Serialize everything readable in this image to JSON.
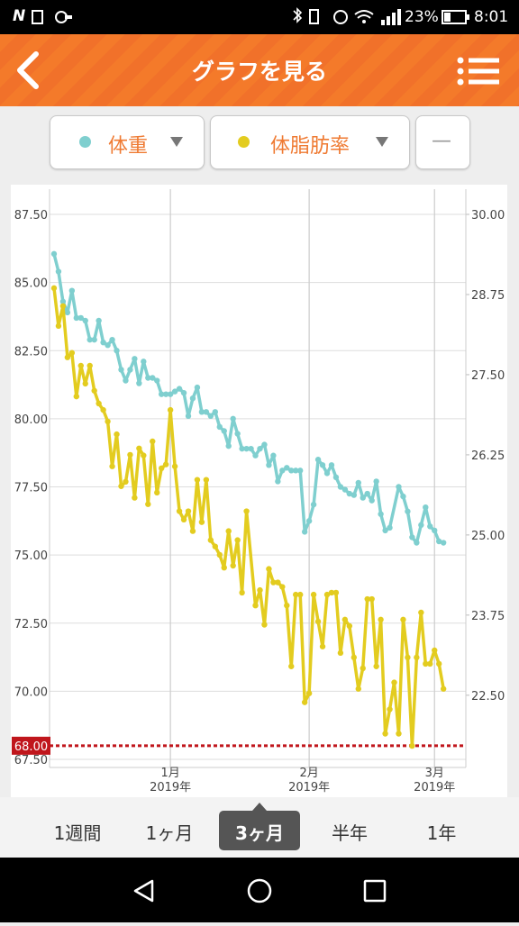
{
  "status_bar": {
    "carrier": "N",
    "battery": "23%",
    "time": "8:01"
  },
  "header": {
    "title": "グラフを見る"
  },
  "selectors": {
    "extra": "—"
  },
  "chart_data": {
    "type": "line",
    "series": [
      {
        "name": "体重",
        "color": "#7fcfcf",
        "axis": "y",
        "x": [
          -26,
          -25,
          -24,
          -23,
          -22,
          -21,
          -20,
          -19,
          -18,
          -17,
          -16,
          -15,
          -14,
          -13,
          -12,
          -11,
          -10,
          -9,
          -8,
          -7,
          -6,
          -5,
          -4,
          -3,
          -2,
          -1,
          0,
          1,
          2,
          3,
          4,
          5,
          6,
          7,
          8,
          9,
          10,
          11,
          12,
          13,
          14,
          15,
          16,
          17,
          18,
          19,
          20,
          21,
          22,
          23,
          24,
          25,
          26,
          27,
          28,
          29,
          30,
          31,
          32,
          33,
          34,
          35,
          36,
          37,
          38,
          39,
          40,
          41,
          42,
          43,
          44,
          45,
          46,
          47,
          48,
          49,
          51,
          52,
          53,
          54,
          55,
          56,
          57,
          58,
          59,
          60,
          61
        ],
        "values": [
          86.05,
          85.4,
          84.3,
          83.9,
          84.7,
          83.7,
          83.7,
          83.6,
          82.9,
          82.9,
          83.6,
          82.8,
          82.7,
          82.9,
          82.5,
          81.8,
          81.4,
          81.8,
          82.2,
          81.3,
          82.1,
          81.5,
          81.5,
          81.4,
          80.9,
          80.9,
          80.9,
          81.0,
          81.1,
          80.95,
          80.1,
          80.75,
          81.15,
          80.25,
          80.25,
          80.1,
          80.25,
          79.7,
          79.55,
          79.0,
          80.0,
          79.45,
          78.9,
          78.9,
          78.9,
          78.65,
          78.9,
          79.05,
          78.3,
          78.65,
          77.7,
          78.1,
          78.2,
          78.1,
          78.1,
          78.1,
          75.85,
          76.25,
          76.85,
          78.5,
          78.3,
          78.0,
          78.3,
          77.85,
          77.5,
          77.4,
          77.25,
          77.2,
          77.65,
          77.1,
          77.25,
          77.0,
          77.7,
          76.5,
          75.9,
          76.0,
          77.5,
          77.15,
          76.6,
          75.65,
          75.45,
          76.1,
          76.75,
          76.05,
          75.9,
          75.5,
          75.45
        ]
      },
      {
        "name": "体脂肪率",
        "color": "#e3cc1f",
        "axis": "y2",
        "x": [
          -26,
          -25,
          -24,
          -23,
          -22,
          -21,
          -20,
          -19,
          -18,
          -17,
          -16,
          -15,
          -14,
          -13,
          -12,
          -11,
          -10,
          -9,
          -8,
          -7,
          -6,
          -5,
          -4,
          -3,
          -2,
          -1,
          0,
          1,
          2,
          3,
          4,
          5,
          6,
          7,
          8,
          9,
          10,
          11,
          12,
          13,
          14,
          15,
          16,
          17,
          19,
          20,
          21,
          22,
          23,
          24,
          25,
          26,
          27,
          28,
          29,
          30,
          31,
          32,
          33,
          34,
          35,
          36,
          37,
          38,
          39,
          40,
          41,
          42,
          43,
          44,
          45,
          46,
          47,
          48,
          49,
          50,
          51,
          52,
          53,
          54,
          55,
          56,
          57,
          58,
          59,
          60,
          61
        ],
        "values": [
          28.85,
          28.26,
          28.57,
          27.77,
          27.84,
          27.16,
          27.64,
          27.36,
          27.64,
          27.25,
          27.05,
          26.95,
          26.77,
          26.07,
          26.57,
          25.76,
          25.83,
          26.25,
          25.58,
          26.35,
          26.24,
          25.48,
          26.46,
          25.66,
          26.04,
          26.1,
          26.95,
          26.07,
          25.37,
          25.24,
          25.37,
          25.06,
          25.86,
          25.2,
          25.86,
          24.92,
          24.82,
          24.69,
          24.49,
          25.06,
          24.52,
          24.92,
          24.1,
          25.37,
          23.9,
          24.14,
          23.6,
          24.47,
          24.26,
          24.26,
          24.19,
          23.9,
          22.95,
          24.07,
          24.07,
          22.39,
          22.53,
          24.07,
          23.65,
          23.26,
          24.07,
          24.1,
          24.1,
          23.16,
          23.68,
          23.58,
          23.09,
          22.6,
          22.92,
          24.0,
          24.0,
          22.95,
          23.68,
          21.9,
          22.28,
          22.7,
          21.9,
          23.68,
          23.09,
          21.71,
          23.09,
          23.79,
          22.99,
          22.99,
          23.2,
          22.99,
          22.6
        ]
      }
    ],
    "xlim": [
      -27,
      66
    ],
    "xticks": [
      {
        "value": 0,
        "label": "1月\n2019年"
      },
      {
        "value": 31,
        "label": "2月\n2019年"
      },
      {
        "value": 59,
        "label": "3月\n2019年"
      }
    ],
    "ylim": [
      67.5,
      87.5
    ],
    "yticks": [
      {
        "value": 67.5,
        "label": "67.50"
      },
      {
        "value": 70,
        "label": "70.00"
      },
      {
        "value": 72.5,
        "label": "72.50"
      },
      {
        "value": 75,
        "label": "75.00"
      },
      {
        "value": 77.5,
        "label": "77.50"
      },
      {
        "value": 80,
        "label": "80.00"
      },
      {
        "value": 82.5,
        "label": "82.50"
      },
      {
        "value": 85,
        "label": "85.00"
      },
      {
        "value": 87.5,
        "label": "87.50"
      }
    ],
    "y2lim": [
      21.5,
      30
    ],
    "y2ticks": [
      {
        "value": 22.5,
        "label": "22.50"
      },
      23.75,
      {
        "value": 25,
        "label": "25.00"
      },
      26.25,
      {
        "value": 27.5,
        "label": "27.50"
      },
      28.75,
      {
        "value": 30,
        "label": "30.00"
      }
    ],
    "target": {
      "value": 68,
      "label": "68.00",
      "color": "#c0161c"
    },
    "grid": true
  },
  "tabs": {
    "items": [
      "1週間",
      "1ヶ月",
      "3ヶ月",
      "半年",
      "1年"
    ],
    "selected": 2
  }
}
